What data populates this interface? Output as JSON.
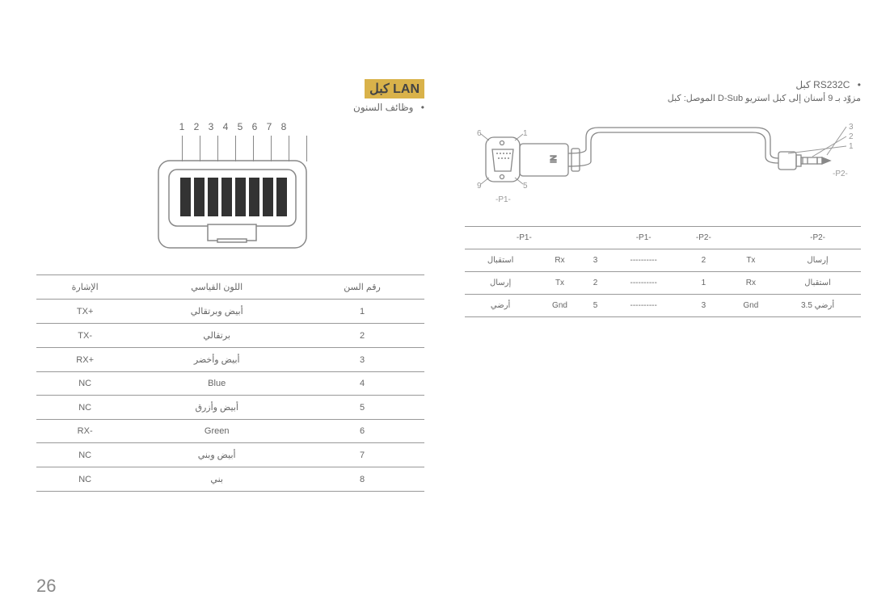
{
  "page_number": "26",
  "lan": {
    "title": "كبل LAN",
    "title_bg": "#d9b24a",
    "title_color": "#444444",
    "bullet_label": "وظائف السنون",
    "pins": [
      "1",
      "2",
      "3",
      "4",
      "5",
      "6",
      "7",
      "8"
    ],
    "table": {
      "headers": [
        "الإشارة",
        "اللون القياسي",
        "رقم السن"
      ],
      "rows": [
        [
          "TX+",
          "أبيض وبرتقالي",
          "1"
        ],
        [
          "TX-",
          "برتقالي",
          "2"
        ],
        [
          "RX+",
          "أبيض وأخضر",
          "3"
        ],
        [
          "NC",
          "Blue",
          "4"
        ],
        [
          "NC",
          "أبيض وأزرق",
          "5"
        ],
        [
          "RX-",
          "Green",
          "6"
        ],
        [
          "NC",
          "أبيض وبني",
          "7"
        ],
        [
          "NC",
          "بني",
          "8"
        ]
      ]
    }
  },
  "rs232": {
    "title": "كبل RS232C",
    "subtitle": "الموصل: كبل D-Sub مزوّد بـ 9 أسنان إلى كبل استريو",
    "dsub": {
      "labels": {
        "tl": "6",
        "tr": "1",
        "bl": "9",
        "br": "5",
        "p1": "-P1-"
      }
    },
    "jack": {
      "labels": {
        "t": "3",
        "m": "2",
        "b": "1",
        "p2": "-P2-"
      }
    },
    "table": {
      "headers": [
        "-P1-",
        "",
        "-P1-",
        "-P2-",
        "",
        "-P2-"
      ],
      "rows": [
        [
          "استقبال",
          "Rx",
          "3",
          "----------",
          "2",
          "Tx",
          "إرسال"
        ],
        [
          "إرسال",
          "Tx",
          "2",
          "----------",
          "1",
          "Rx",
          "استقبال"
        ],
        [
          "أرضي",
          "Gnd",
          "5",
          "----------",
          "3",
          "Gnd",
          "أرضي 3.5"
        ]
      ]
    }
  }
}
